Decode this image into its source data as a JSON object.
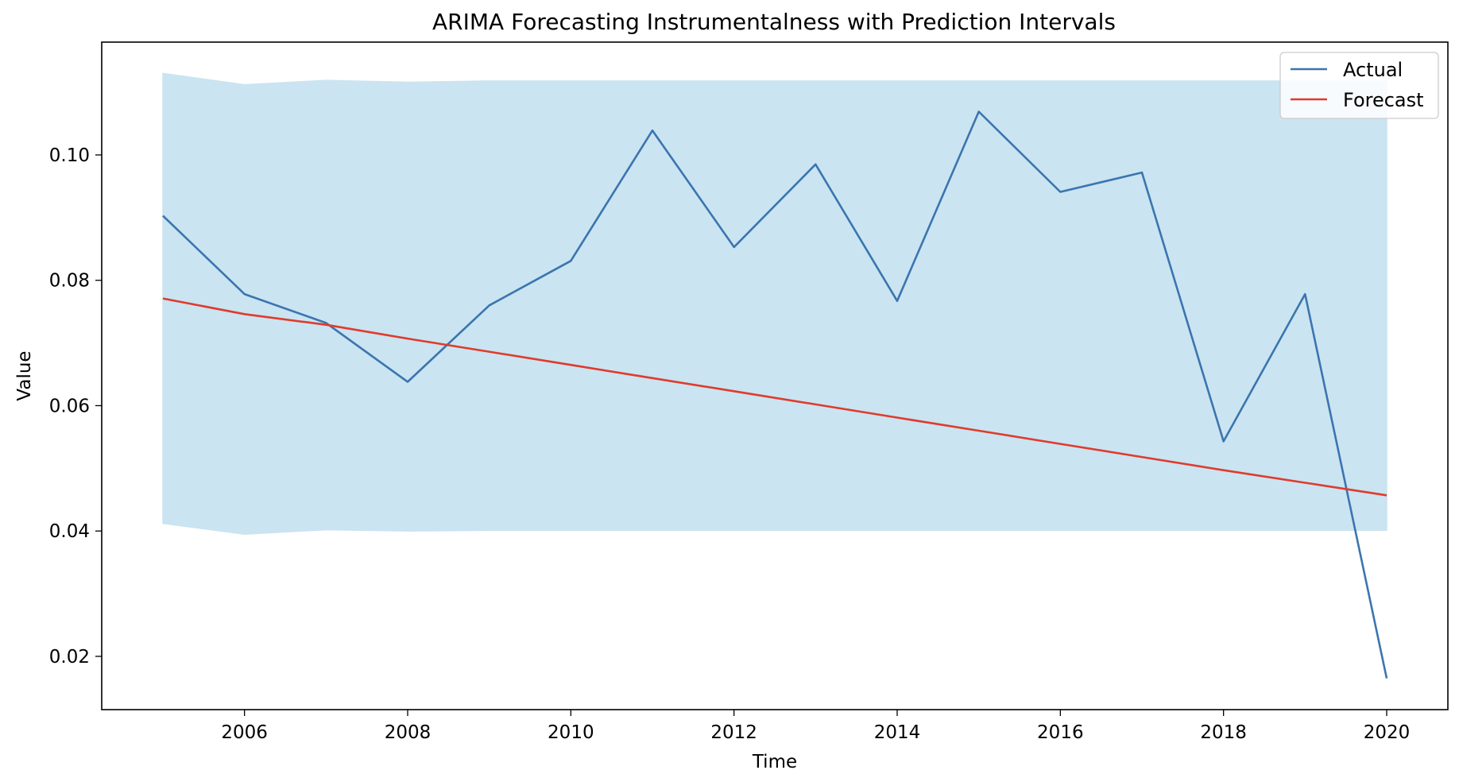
{
  "chart_data": {
    "type": "line",
    "title": "ARIMA Forecasting Instrumentalness with Prediction Intervals",
    "xlabel": "Time",
    "ylabel": "Value",
    "xlim": [
      2004.25,
      2020.75
    ],
    "ylim": [
      0.0115,
      0.118
    ],
    "x_ticks": [
      2006,
      2008,
      2010,
      2012,
      2014,
      2016,
      2018,
      2020
    ],
    "y_ticks": [
      0.02,
      0.04,
      0.06,
      0.08,
      0.1
    ],
    "y_tick_labels": [
      "0.02",
      "0.04",
      "0.06",
      "0.08",
      "0.10"
    ],
    "legend_position": "top-right",
    "grid": false,
    "x": [
      2005,
      2006,
      2007,
      2008,
      2009,
      2010,
      2011,
      2012,
      2013,
      2014,
      2015,
      2016,
      2017,
      2018,
      2019,
      2020
    ],
    "series": [
      {
        "name": "Actual",
        "color": "#3b75af",
        "values": [
          0.0903,
          0.0778,
          0.0732,
          0.0638,
          0.076,
          0.0831,
          0.1039,
          0.0853,
          0.0985,
          0.0767,
          0.1069,
          0.0941,
          0.0972,
          0.0543,
          0.0778,
          0.0165
        ]
      },
      {
        "name": "Forecast",
        "color": "#e03b2c",
        "values": [
          0.0771,
          0.0746,
          0.0729,
          0.0707,
          0.0686,
          0.0665,
          0.0644,
          0.0623,
          0.0602,
          0.0581,
          0.056,
          0.0539,
          0.0518,
          0.0497,
          0.0477,
          0.0457
        ]
      }
    ],
    "interval": {
      "color": "#cae4f1",
      "lower": [
        0.0412,
        0.0395,
        0.0402,
        0.04,
        0.0401,
        0.0401,
        0.0401,
        0.0401,
        0.0401,
        0.0401,
        0.0401,
        0.0401,
        0.0401,
        0.0401,
        0.0401,
        0.0401
      ],
      "upper": [
        0.113,
        0.1112,
        0.1119,
        0.1116,
        0.1118,
        0.1118,
        0.1118,
        0.1118,
        0.1118,
        0.1118,
        0.1118,
        0.1118,
        0.1118,
        0.1118,
        0.1118,
        0.1118
      ]
    }
  }
}
